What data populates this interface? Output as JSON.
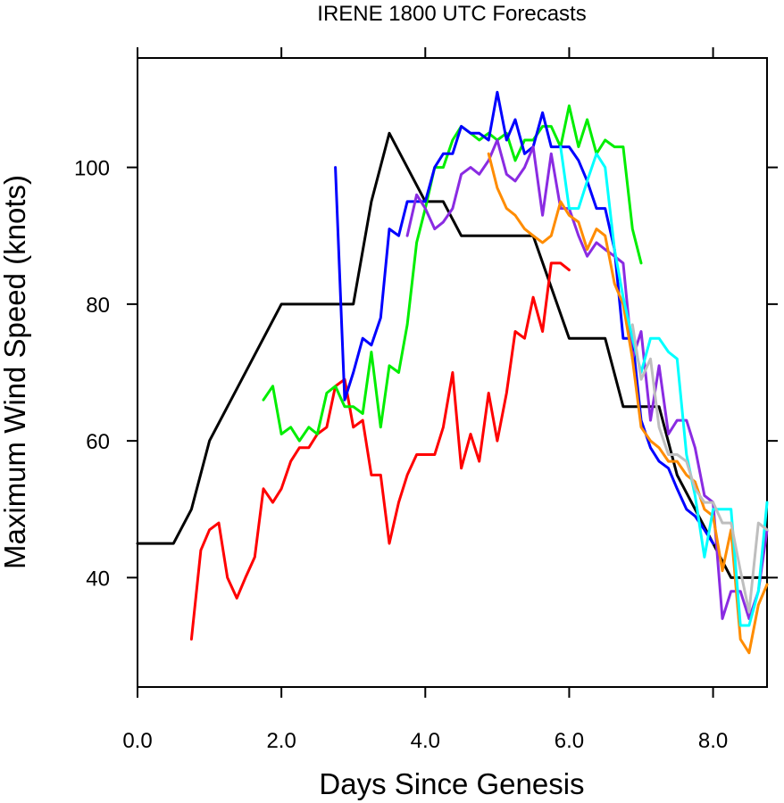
{
  "chart_data": {
    "type": "line",
    "title": "IRENE 1800 UTC Forecasts",
    "xlabel": "Days Since Genesis",
    "ylabel": "Maximum Wind Speed (knots)",
    "xlim": [
      0,
      8.75
    ],
    "ylim": [
      24,
      116
    ],
    "x_ticks": [
      0,
      2,
      4,
      6,
      8
    ],
    "x_tick_labels": [
      "0.0",
      "2.0",
      "4.0",
      "6.0",
      "8.0"
    ],
    "y_ticks": [
      40,
      60,
      80,
      100
    ],
    "y_tick_labels": [
      "40",
      "60",
      "80",
      "100"
    ],
    "grid": false,
    "legend": "none",
    "series": [
      {
        "color": "#000000",
        "x": [
          0,
          0.5,
          0.75,
          1.0,
          2.0,
          2.5,
          3.0,
          3.25,
          3.5,
          4.0,
          4.25,
          4.5,
          5.0,
          5.5,
          6.0,
          6.5,
          6.75,
          7.0,
          7.25,
          7.5,
          8.0,
          8.25,
          8.5,
          8.75
        ],
        "y": [
          45,
          45,
          50,
          60,
          80,
          80,
          80,
          95,
          105,
          95,
          95,
          90,
          90,
          90,
          75,
          75,
          65,
          65,
          65,
          55,
          45,
          40,
          40,
          40
        ]
      },
      {
        "color": "#ff0000",
        "x": [
          0.75,
          0.88,
          1.0,
          1.13,
          1.25,
          1.38,
          1.5,
          1.63,
          1.75,
          1.88,
          2.0,
          2.13,
          2.25,
          2.38,
          2.5,
          2.63,
          2.75,
          2.88,
          3.0,
          3.13,
          3.25,
          3.38,
          3.5,
          3.63,
          3.75,
          3.88,
          4.0,
          4.13,
          4.25,
          4.38,
          4.5,
          4.63,
          4.75,
          4.88,
          5.0,
          5.13,
          5.25,
          5.38,
          5.5,
          5.63,
          5.75,
          5.88,
          6.0
        ],
        "y": [
          31,
          44,
          47,
          48,
          40,
          37,
          40,
          43,
          53,
          51,
          53,
          57,
          59,
          59,
          61,
          62,
          68,
          69,
          62,
          63,
          55,
          55,
          45,
          51,
          55,
          58,
          58,
          58,
          62,
          70,
          56,
          61,
          57,
          67,
          60,
          67,
          76,
          75,
          81,
          76,
          86,
          86,
          85
        ]
      },
      {
        "color": "#00ee00",
        "x": [
          1.75,
          1.88,
          2.0,
          2.13,
          2.25,
          2.38,
          2.5,
          2.63,
          2.75,
          2.88,
          3.0,
          3.13,
          3.25,
          3.38,
          3.5,
          3.63,
          3.75,
          3.88,
          4.0,
          4.13,
          4.25,
          4.38,
          4.5,
          4.63,
          4.75,
          4.88,
          5.0,
          5.13,
          5.25,
          5.38,
          5.5,
          5.63,
          5.75,
          5.88,
          6.0,
          6.13,
          6.25,
          6.38,
          6.5,
          6.63,
          6.75,
          6.88,
          7.0
        ],
        "y": [
          66,
          68,
          61,
          62,
          60,
          62,
          61,
          67,
          68,
          65,
          65,
          64,
          73,
          62,
          71,
          70,
          77,
          89,
          94,
          100,
          100,
          104,
          106,
          105,
          104,
          105,
          104,
          105,
          101,
          104,
          104,
          106,
          106,
          103,
          109,
          103,
          107,
          102,
          104,
          103,
          103,
          91,
          86
        ]
      },
      {
        "color": "#0000ff",
        "x": [
          2.75,
          2.88,
          3.0,
          3.13,
          3.25,
          3.38,
          3.5,
          3.63,
          3.75,
          3.88,
          4.0,
          4.13,
          4.25,
          4.38,
          4.5,
          4.63,
          4.75,
          4.88,
          5.0,
          5.13,
          5.25,
          5.38,
          5.5,
          5.63,
          5.75,
          5.88,
          6.0,
          6.13,
          6.25,
          6.38,
          6.5,
          6.63,
          6.75,
          6.88,
          7.0,
          7.13,
          7.25,
          7.38,
          7.5,
          7.63,
          7.75,
          7.88,
          8.0
        ],
        "y": [
          100,
          66,
          70,
          75,
          74,
          78,
          91,
          90,
          95,
          95,
          95,
          100,
          102,
          102,
          106,
          105,
          105,
          104,
          111,
          104,
          107,
          102,
          103,
          108,
          103,
          103,
          103,
          101,
          98,
          94,
          94,
          88,
          75,
          75,
          63,
          59,
          57,
          56,
          53,
          50,
          49,
          47,
          45
        ]
      },
      {
        "color": "#8a2be2",
        "x": [
          3.75,
          3.88,
          4.0,
          4.13,
          4.25,
          4.38,
          4.5,
          4.63,
          4.75,
          4.88,
          5.0,
          5.13,
          5.25,
          5.38,
          5.5,
          5.63,
          5.75,
          5.88,
          6.0,
          6.13,
          6.25,
          6.38,
          6.5,
          6.63,
          6.75,
          6.88,
          7.0,
          7.13,
          7.25,
          7.38,
          7.5,
          7.63,
          7.75,
          7.88,
          8.0,
          8.13,
          8.25,
          8.38,
          8.5,
          8.63,
          8.75
        ],
        "y": [
          90,
          96,
          94,
          91,
          92,
          94,
          99,
          100,
          99,
          101,
          104,
          99,
          98,
          100,
          103,
          93,
          102,
          94,
          94,
          90,
          87,
          89,
          88,
          87,
          86,
          72,
          76,
          63,
          71,
          61,
          63,
          63,
          59,
          52,
          51,
          34,
          38,
          38,
          34,
          38,
          47
        ]
      },
      {
        "color": "#ff8c00",
        "x": [
          4.88,
          5.0,
          5.13,
          5.25,
          5.38,
          5.5,
          5.63,
          5.75,
          5.88,
          6.0,
          6.13,
          6.25,
          6.38,
          6.5,
          6.63,
          6.75,
          6.88,
          7.0,
          7.13,
          7.25,
          7.38,
          7.5,
          7.63,
          7.75,
          7.88,
          8.0,
          8.13,
          8.25,
          8.38,
          8.5,
          8.63,
          8.75
        ],
        "y": [
          102,
          97,
          94,
          93,
          91,
          90,
          89,
          90,
          95,
          93,
          92,
          88,
          91,
          90,
          83,
          80,
          72,
          62,
          60,
          59,
          57,
          57,
          55,
          54,
          50,
          49,
          41,
          47,
          31,
          29,
          36,
          39
        ]
      },
      {
        "color": "#00ffff",
        "x": [
          5.88,
          6.0,
          6.13,
          6.25,
          6.38,
          6.5,
          6.63,
          6.75,
          6.88,
          7.0,
          7.13,
          7.25,
          7.38,
          7.5,
          7.63,
          7.75,
          7.88,
          8.0,
          8.13,
          8.25,
          8.38,
          8.5,
          8.63,
          8.75
        ],
        "y": [
          103,
          94,
          94,
          98,
          102,
          100,
          88,
          81,
          75,
          70,
          75,
          75,
          73,
          72,
          58,
          52,
          43,
          50,
          50,
          50,
          33,
          33,
          38,
          51
        ]
      },
      {
        "color": "#bebebe",
        "x": [
          6.88,
          7.0,
          7.13,
          7.25,
          7.38,
          7.5,
          7.63,
          7.75,
          7.88,
          8.0,
          8.13,
          8.25,
          8.38,
          8.5,
          8.63,
          8.75
        ],
        "y": [
          77,
          69,
          72,
          62,
          58,
          58,
          57,
          53,
          51,
          51,
          48,
          48,
          41,
          35,
          48,
          47
        ]
      }
    ]
  }
}
